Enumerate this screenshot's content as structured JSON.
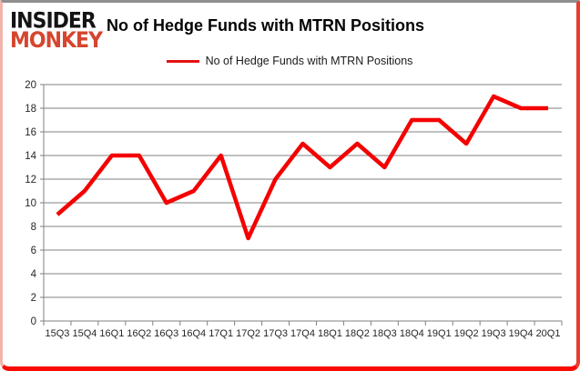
{
  "logo": {
    "line1": "INSIDER",
    "line2": "MONKEY"
  },
  "header": {
    "title": "No of Hedge Funds with MTRN Positions"
  },
  "legend": {
    "label": "No of Hedge Funds with MTRN Positions",
    "swatch_color": "#e31212"
  },
  "colors": {
    "line": "#f40000",
    "grid": "#808080",
    "axis_text": "#262626",
    "logo_black": "#141414",
    "logo_red": "#d6452e",
    "background": "#ffffff"
  },
  "chart_data": {
    "type": "line",
    "title": "No of Hedge Funds with MTRN Positions",
    "categories": [
      "15Q3",
      "15Q4",
      "16Q1",
      "16Q2",
      "16Q3",
      "16Q4",
      "17Q1",
      "17Q2",
      "17Q3",
      "17Q4",
      "18Q1",
      "18Q2",
      "18Q3",
      "18Q4",
      "19Q1",
      "19Q2",
      "19Q3",
      "19Q4",
      "20Q1"
    ],
    "series": [
      {
        "name": "No of Hedge Funds with MTRN Positions",
        "color": "#f40000",
        "values": [
          9,
          11,
          14,
          14,
          10,
          11,
          14,
          7,
          12,
          15,
          13,
          15,
          13,
          17,
          17,
          15,
          19,
          18,
          18
        ]
      }
    ],
    "xlabel": "",
    "ylabel": "",
    "ylim": [
      0,
      20
    ],
    "ytick_step": 2,
    "grid": true,
    "legend_position": "top-center"
  }
}
